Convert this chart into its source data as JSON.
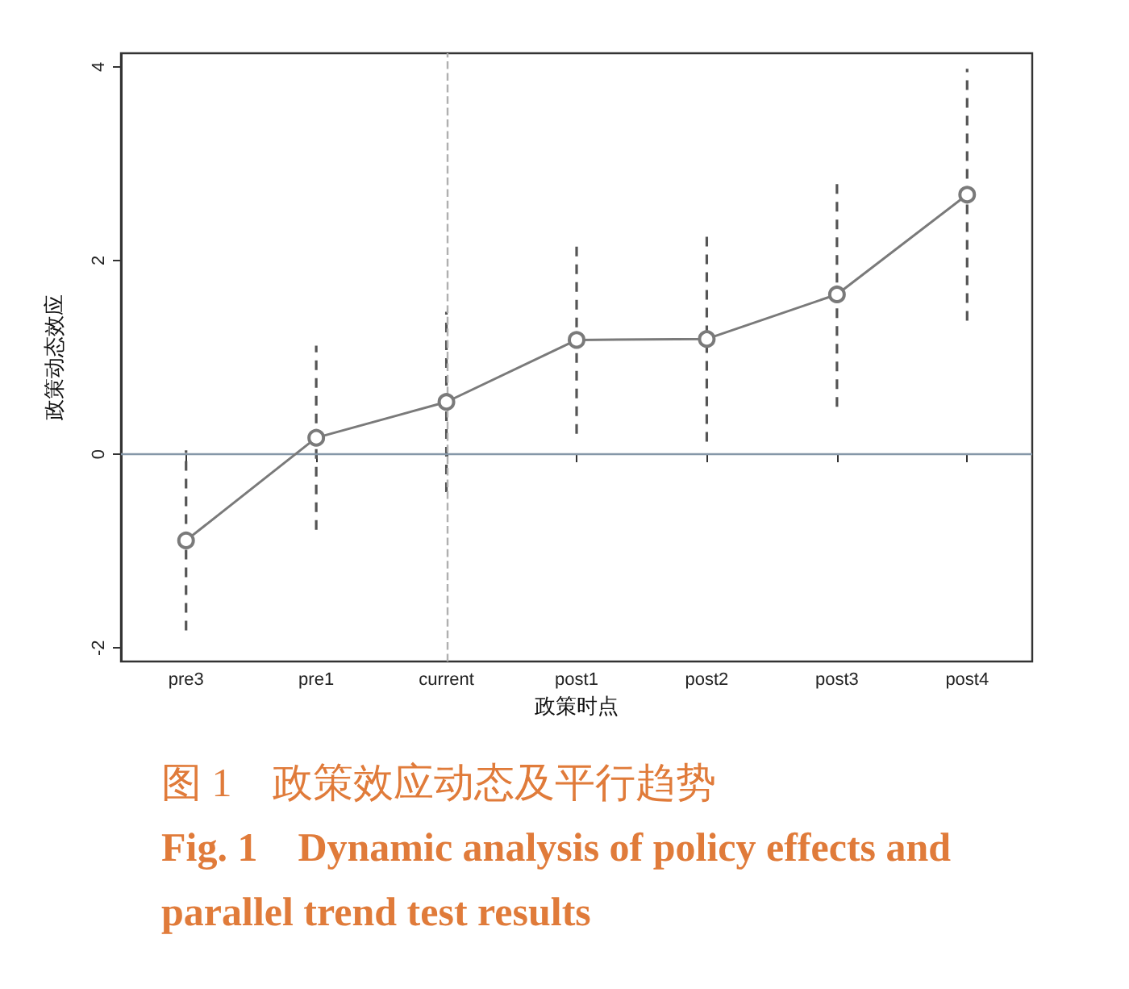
{
  "chart_data": {
    "type": "line",
    "xlabel": "政策时点",
    "ylabel": "政策动态效应",
    "categories": [
      "pre3",
      "pre1",
      "current",
      "post1",
      "post2",
      "post3",
      "post4"
    ],
    "series": [
      {
        "color": "#7a7a7a",
        "values": [
          -0.89,
          0.17,
          0.54,
          1.18,
          1.19,
          1.65,
          2.68
        ],
        "errors": [
          0.93,
          0.95,
          0.93,
          0.97,
          1.06,
          1.16,
          1.3
        ]
      }
    ],
    "ylim": [
      -2.14,
      4.14
    ],
    "yticks": [
      -2,
      0,
      2,
      4
    ],
    "grid": false,
    "marker": "circle",
    "line_style": "solid",
    "ref_lines": [
      {
        "axis": "y",
        "value": 0,
        "color": "#8597a8",
        "line_style": "solid"
      },
      {
        "axis": "x",
        "value": "current",
        "color": "#b0b0b0",
        "line_style": "dashed"
      }
    ],
    "annotations": [
      "图 1　政策效应动态及平行趋势",
      "Fig. 1　Dynamic analysis of policy effects and parallel trend test results"
    ]
  }
}
